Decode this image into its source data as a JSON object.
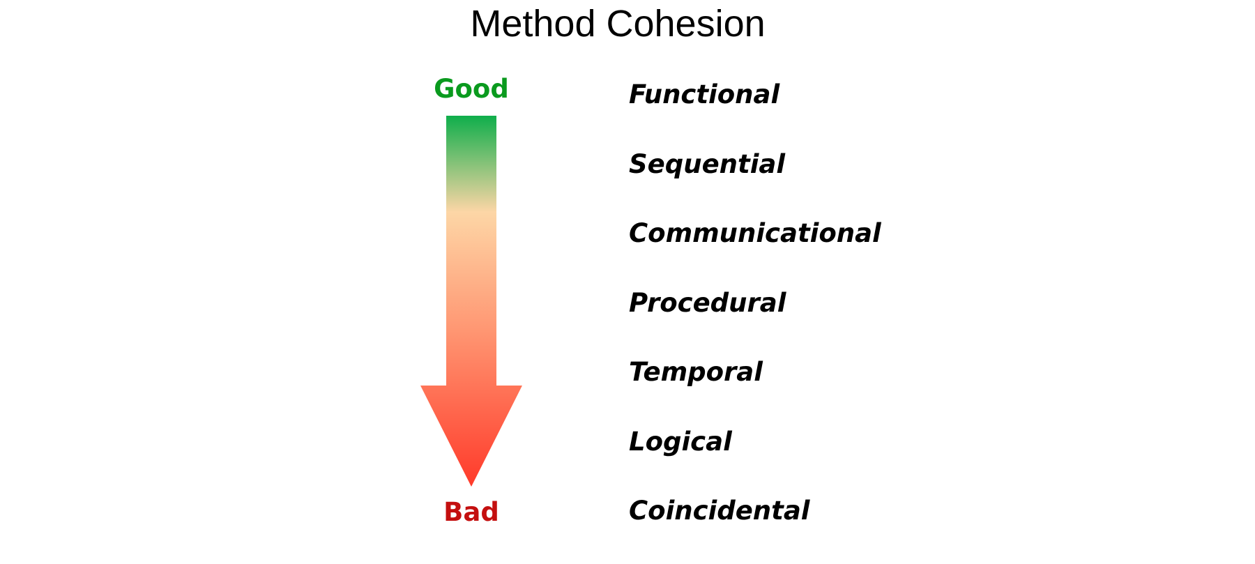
{
  "title": "Method Cohesion",
  "scale": {
    "top_label": "Good",
    "bottom_label": "Bad",
    "top_color": "#0a9a1e",
    "bottom_color": "#c40f0f",
    "gradient_colors": [
      "#0fae4b",
      "#fdd6a6",
      "#ff9672",
      "#ff3a2a"
    ]
  },
  "levels": [
    "Functional",
    "Sequential",
    "Communicational",
    "Procedural",
    "Temporal",
    "Logical",
    "Coincidental"
  ]
}
